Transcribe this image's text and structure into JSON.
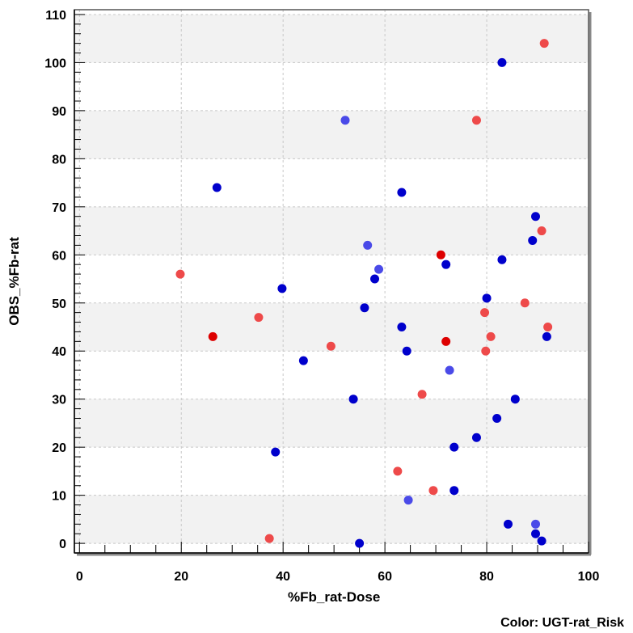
{
  "chart_data": {
    "type": "scatter",
    "xlabel": "%Fb_rat-Dose",
    "ylabel": "OBS_%Fb-rat",
    "color_caption": "Color: UGT-rat_Risk",
    "xlim": [
      -1,
      100
    ],
    "ylim": [
      -2,
      111
    ],
    "x_ticks": [
      0,
      20,
      40,
      60,
      80,
      100
    ],
    "y_ticks": [
      0,
      10,
      20,
      30,
      40,
      50,
      60,
      70,
      80,
      90,
      100,
      110
    ],
    "grid": true,
    "banded_background": true,
    "band_color": "#f2f2f2",
    "grid_color": "#c8c8c8",
    "colors": {
      "dark_blue": "#0000cc",
      "light_blue": "#4a4ae8",
      "red": "#dd0000",
      "light_red": "#ee4a4a"
    },
    "points": [
      {
        "x": 83.0,
        "y": 100,
        "c": "dark_blue"
      },
      {
        "x": 27.0,
        "y": 74,
        "c": "dark_blue"
      },
      {
        "x": 63.3,
        "y": 73,
        "c": "dark_blue"
      },
      {
        "x": 89.6,
        "y": 68,
        "c": "dark_blue"
      },
      {
        "x": 89.0,
        "y": 63,
        "c": "dark_blue"
      },
      {
        "x": 83.0,
        "y": 59,
        "c": "dark_blue"
      },
      {
        "x": 72.0,
        "y": 58,
        "c": "dark_blue"
      },
      {
        "x": 58.0,
        "y": 55,
        "c": "dark_blue"
      },
      {
        "x": 39.8,
        "y": 53,
        "c": "dark_blue"
      },
      {
        "x": 80.0,
        "y": 51,
        "c": "dark_blue"
      },
      {
        "x": 56.0,
        "y": 49,
        "c": "dark_blue"
      },
      {
        "x": 63.3,
        "y": 45,
        "c": "dark_blue"
      },
      {
        "x": 91.8,
        "y": 43,
        "c": "dark_blue"
      },
      {
        "x": 64.3,
        "y": 40,
        "c": "dark_blue"
      },
      {
        "x": 44.0,
        "y": 38,
        "c": "dark_blue"
      },
      {
        "x": 53.8,
        "y": 30,
        "c": "dark_blue"
      },
      {
        "x": 85.6,
        "y": 30,
        "c": "dark_blue"
      },
      {
        "x": 82.0,
        "y": 26,
        "c": "dark_blue"
      },
      {
        "x": 78.0,
        "y": 22,
        "c": "dark_blue"
      },
      {
        "x": 73.6,
        "y": 20,
        "c": "dark_blue"
      },
      {
        "x": 38.5,
        "y": 19,
        "c": "dark_blue"
      },
      {
        "x": 73.6,
        "y": 11,
        "c": "dark_blue"
      },
      {
        "x": 84.2,
        "y": 4,
        "c": "dark_blue"
      },
      {
        "x": 89.6,
        "y": 2,
        "c": "dark_blue"
      },
      {
        "x": 90.8,
        "y": 0.5,
        "c": "dark_blue"
      },
      {
        "x": 55.0,
        "y": 0,
        "c": "dark_blue"
      },
      {
        "x": 52.2,
        "y": 88,
        "c": "light_blue"
      },
      {
        "x": 56.6,
        "y": 62,
        "c": "light_blue"
      },
      {
        "x": 58.8,
        "y": 57,
        "c": "light_blue"
      },
      {
        "x": 72.7,
        "y": 36,
        "c": "light_blue"
      },
      {
        "x": 64.6,
        "y": 9,
        "c": "light_blue"
      },
      {
        "x": 89.6,
        "y": 4,
        "c": "light_blue"
      },
      {
        "x": 71.0,
        "y": 60,
        "c": "red"
      },
      {
        "x": 26.2,
        "y": 43,
        "c": "red"
      },
      {
        "x": 72.0,
        "y": 42,
        "c": "red"
      },
      {
        "x": 91.3,
        "y": 104,
        "c": "light_red"
      },
      {
        "x": 78.0,
        "y": 88,
        "c": "light_red"
      },
      {
        "x": 90.8,
        "y": 65,
        "c": "light_red"
      },
      {
        "x": 19.8,
        "y": 56,
        "c": "light_red"
      },
      {
        "x": 87.5,
        "y": 50,
        "c": "light_red"
      },
      {
        "x": 79.6,
        "y": 48,
        "c": "light_red"
      },
      {
        "x": 35.2,
        "y": 47,
        "c": "light_red"
      },
      {
        "x": 92.0,
        "y": 45,
        "c": "light_red"
      },
      {
        "x": 80.8,
        "y": 43,
        "c": "light_red"
      },
      {
        "x": 49.4,
        "y": 41,
        "c": "light_red"
      },
      {
        "x": 79.8,
        "y": 40,
        "c": "light_red"
      },
      {
        "x": 67.3,
        "y": 31,
        "c": "light_red"
      },
      {
        "x": 62.5,
        "y": 15,
        "c": "light_red"
      },
      {
        "x": 69.5,
        "y": 11,
        "c": "light_red"
      },
      {
        "x": 37.3,
        "y": 1,
        "c": "light_red"
      }
    ]
  }
}
